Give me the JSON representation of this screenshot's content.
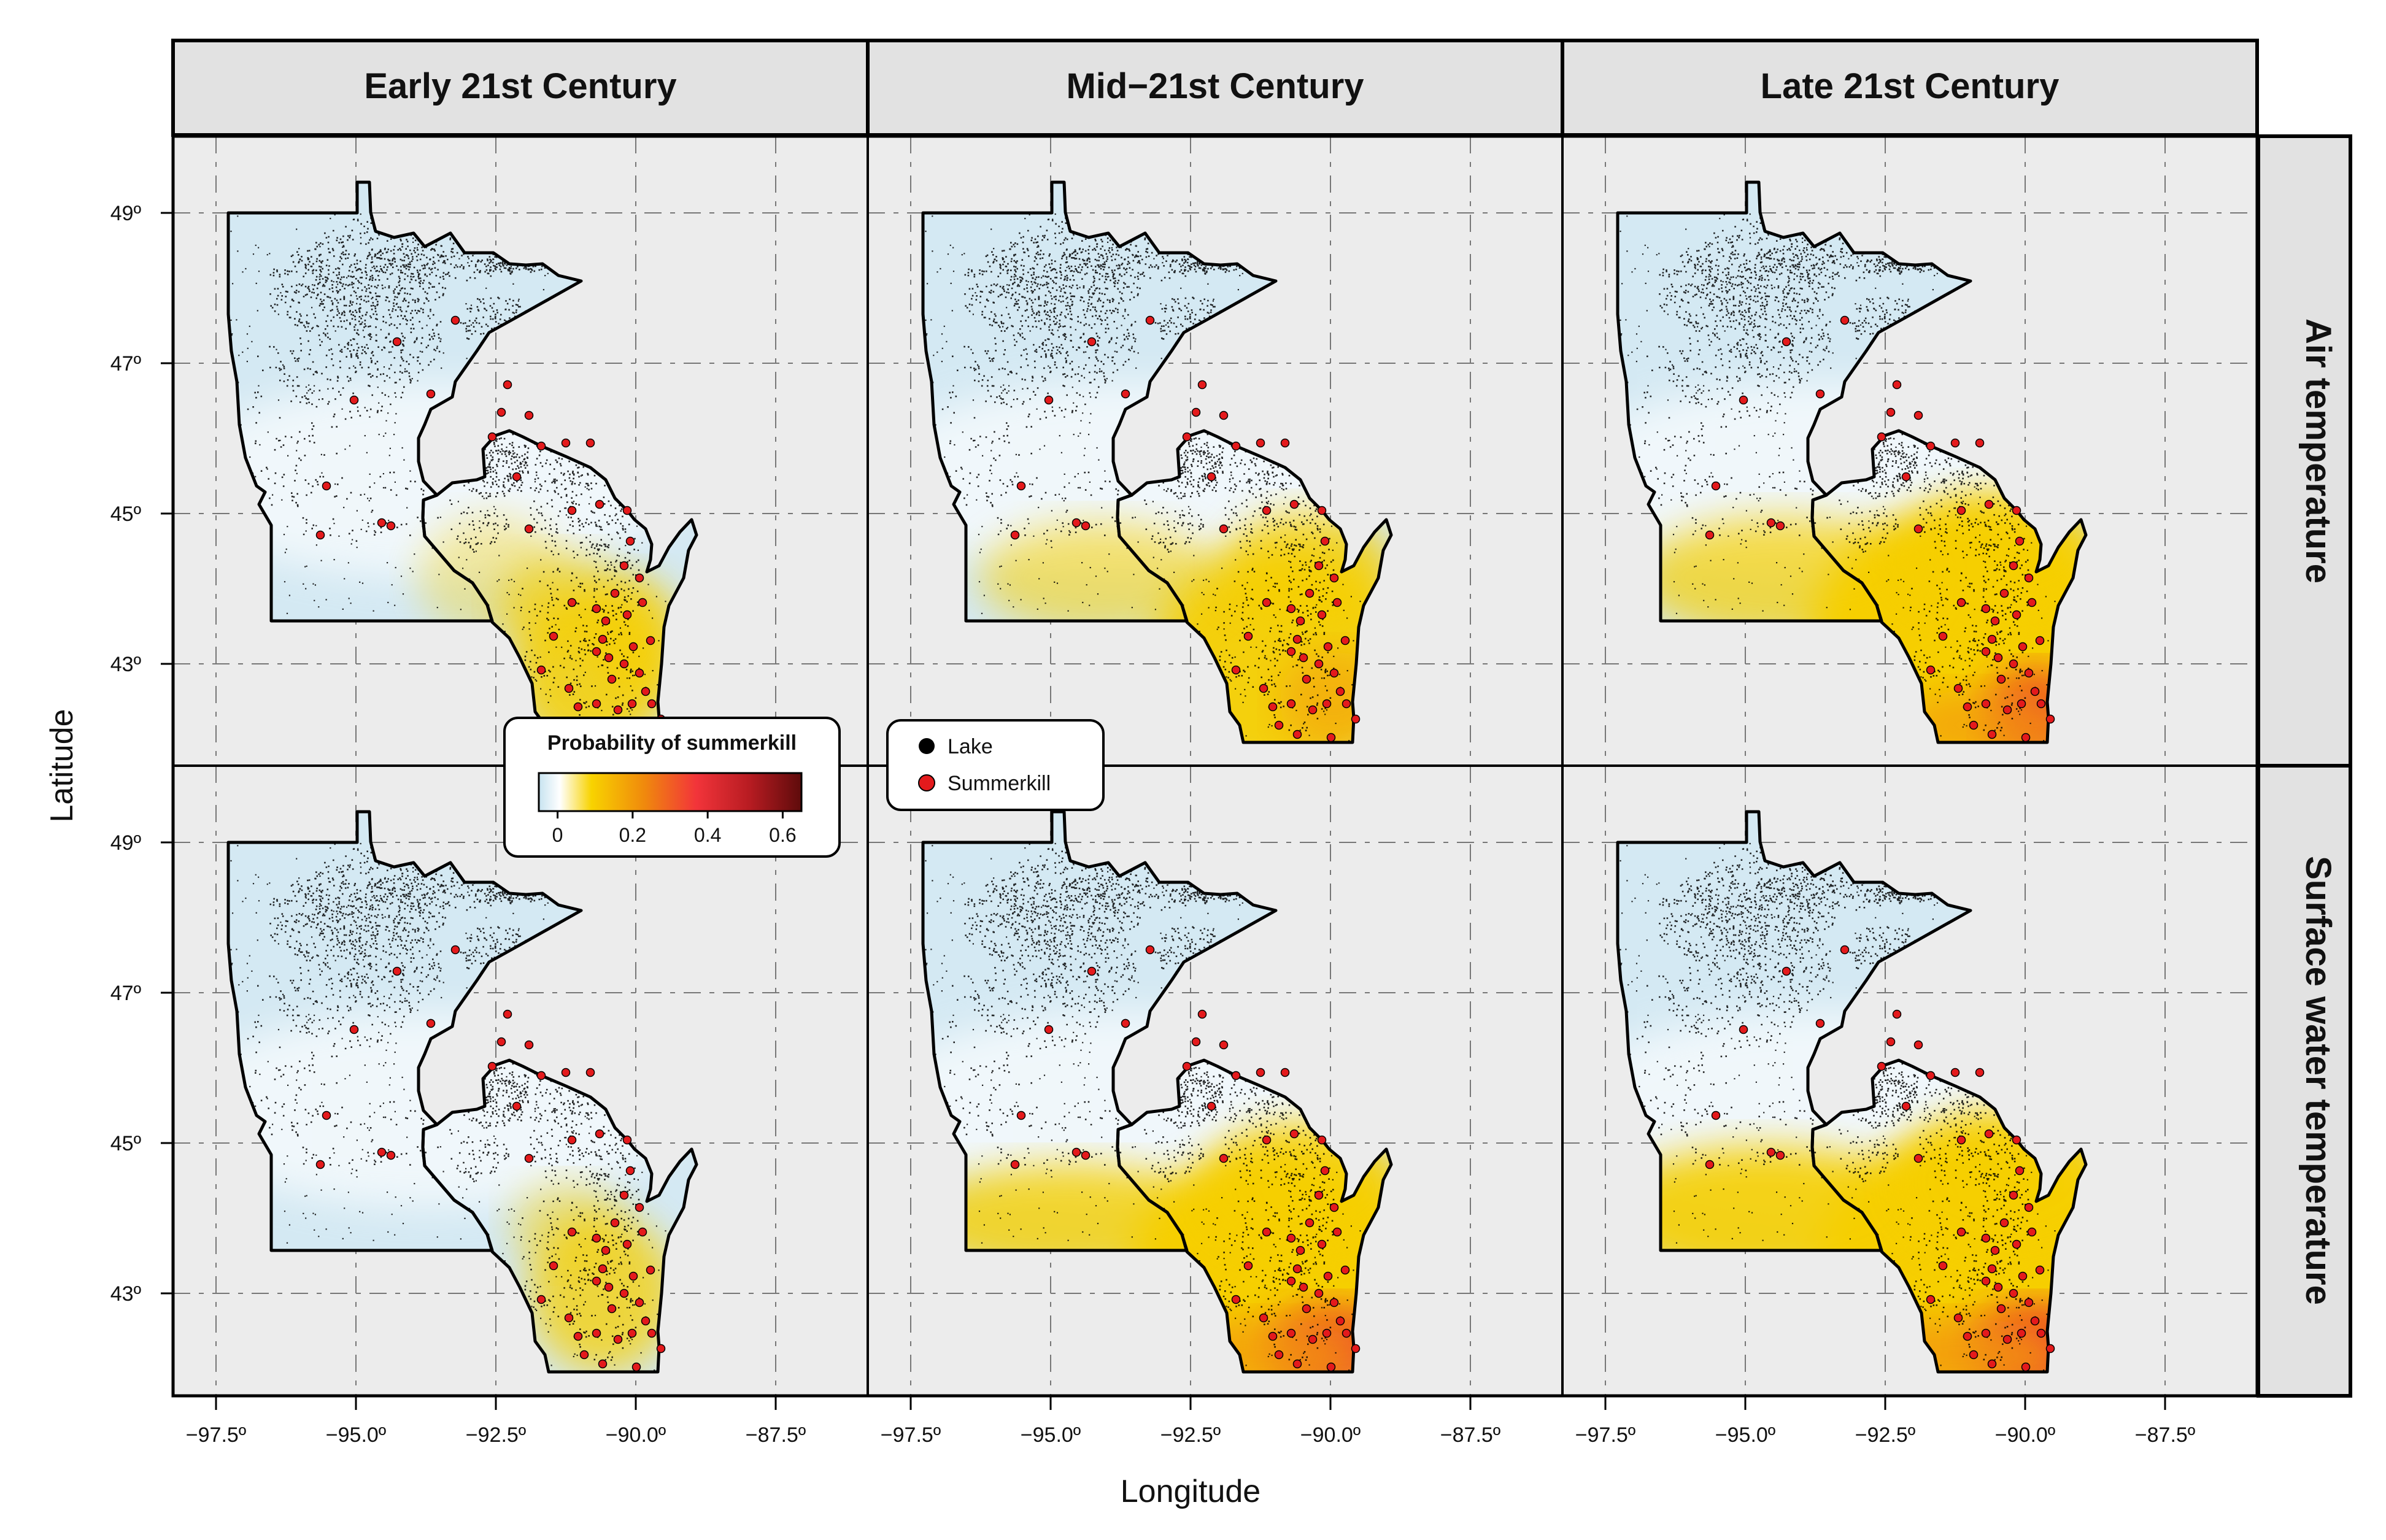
{
  "figure": {
    "columns": [
      {
        "label": "Early 21st Century"
      },
      {
        "label": "Mid−21st Century"
      },
      {
        "label": "Late 21st Century"
      }
    ],
    "rows": [
      {
        "label": "Air temperature"
      },
      {
        "label": "Surface water temperature"
      }
    ],
    "x_axis": {
      "title": "Longitude",
      "ticks": [
        "−97.5º",
        "−95.0º",
        "−92.5º",
        "−90.0º",
        "−87.5º"
      ],
      "values": [
        -97.5,
        -95.0,
        -92.5,
        -90.0,
        -87.5
      ]
    },
    "y_axis": {
      "title": "Latitude",
      "ticks": [
        "49º",
        "47º",
        "45º",
        "43º"
      ],
      "values": [
        49,
        47,
        45,
        43
      ]
    },
    "colorbar": {
      "title": "Probability of summerkill",
      "ticks": [
        "0",
        "0.2",
        "0.4",
        "0.6"
      ],
      "values": [
        0,
        0.2,
        0.4,
        0.6
      ],
      "range": [
        -0.05,
        0.65
      ],
      "colors": [
        "#c7e3f0",
        "#ffffff",
        "#f8d300",
        "#f08a0c",
        "#f2343a",
        "#b81c22",
        "#5e0b0b"
      ]
    },
    "point_legend": [
      {
        "label": "Lake",
        "color": "#000000"
      },
      {
        "label": "Summerkill",
        "color": "#e41a1c"
      }
    ],
    "colors": {
      "panel_bg": "#ececec",
      "strip_bg": "#e2e2e2",
      "cool": "#d4e9f3",
      "warm_yellow": "#f6cf00",
      "warm_orange": "#f39a10",
      "warm_red": "#ec2f33",
      "lake": "#000000",
      "summerkill": "#e41a1c"
    }
  }
}
